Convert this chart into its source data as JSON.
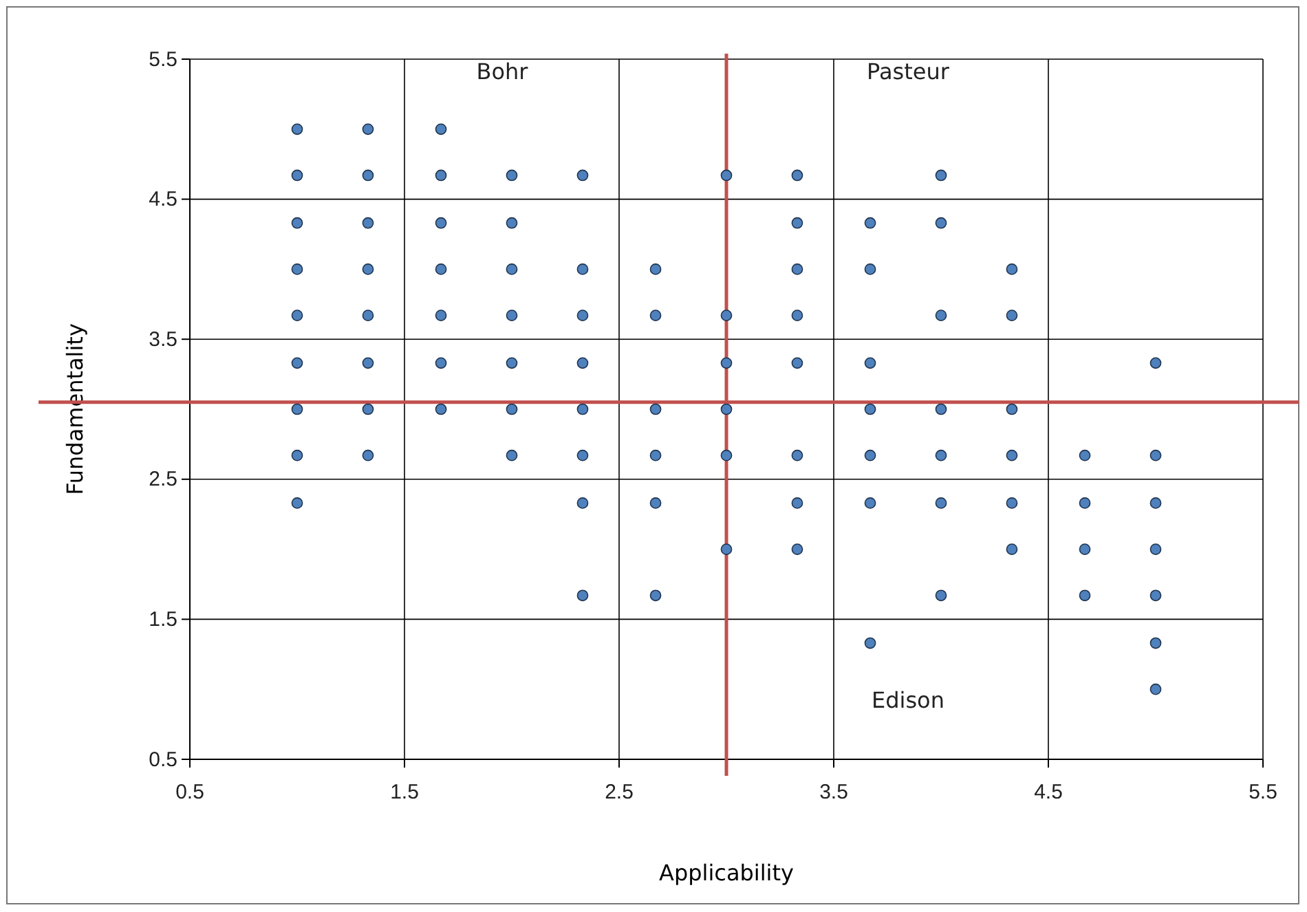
{
  "chart_data": {
    "type": "scatter",
    "xlabel": "Applicability",
    "ylabel": "Fundamentality",
    "xlim": [
      0.5,
      5.5
    ],
    "xticks": [
      0.5,
      1.5,
      2.5,
      3.5,
      4.5,
      5.5
    ],
    "ylim": [
      0.5,
      5.5
    ],
    "yticks": [
      0.5,
      1.5,
      2.5,
      3.5,
      4.5,
      5.5
    ],
    "grid": true,
    "marker": "circle",
    "series": [
      {
        "color": "#4f81bd",
        "x": [
          1,
          1,
          1,
          1,
          1,
          1,
          1,
          1,
          1,
          1.33,
          1.33,
          1.33,
          1.33,
          1.33,
          1.33,
          1.33,
          1.33,
          1.67,
          1.67,
          1.67,
          1.67,
          1.67,
          1.67,
          1.67,
          2,
          2,
          2,
          2,
          2,
          2,
          2,
          2.33,
          2.33,
          2.33,
          2.33,
          2.33,
          2.33,
          2.33,
          2.33,
          2.67,
          2.67,
          2.67,
          2.67,
          2.67,
          2.67,
          3,
          3,
          3,
          3,
          3,
          3,
          3.33,
          3.33,
          3.33,
          3.33,
          3.33,
          3.33,
          3.33,
          3.33,
          3.67,
          3.67,
          3.67,
          3.67,
          3.67,
          3.67,
          3.67,
          4,
          4,
          4,
          4,
          4,
          4,
          4,
          4.33,
          4.33,
          4.33,
          4.33,
          4.33,
          4.33,
          4.67,
          4.67,
          4.67,
          4.67,
          5,
          5,
          5,
          5,
          5,
          5,
          5
        ],
        "values": [
          5,
          4.67,
          4.33,
          4,
          3.67,
          3.33,
          3,
          2.67,
          2.33,
          5,
          4.67,
          4.33,
          4,
          3.67,
          3.33,
          3,
          2.67,
          5,
          4.67,
          4.33,
          4,
          3.67,
          3.33,
          3,
          4.67,
          4.33,
          4,
          3.67,
          3.33,
          3,
          2.67,
          4.67,
          4,
          3.67,
          3.33,
          3,
          2.67,
          2.33,
          1.67,
          4,
          3.67,
          3,
          2.67,
          2.33,
          1.67,
          4.67,
          3.67,
          3.33,
          3,
          2.67,
          2,
          4.67,
          4.33,
          4,
          3.67,
          3.33,
          2.67,
          2.33,
          2,
          4.33,
          4,
          3.33,
          3,
          2.67,
          2.33,
          1.33,
          4.67,
          4.33,
          3.67,
          3,
          2.67,
          2.33,
          1.67,
          4,
          3.67,
          3,
          2.67,
          2.33,
          2,
          2.67,
          2.33,
          2,
          1.67,
          3.33,
          2.67,
          2.33,
          2,
          1.67,
          1.33,
          1
        ]
      }
    ],
    "ref_lines": [
      {
        "axis": "x",
        "value": 3,
        "color": "#c0504d"
      },
      {
        "axis": "y",
        "value": 3.05,
        "color": "#c0504d"
      }
    ],
    "annotations": [
      "Bohr",
      "Pasteur",
      "Edison"
    ]
  }
}
